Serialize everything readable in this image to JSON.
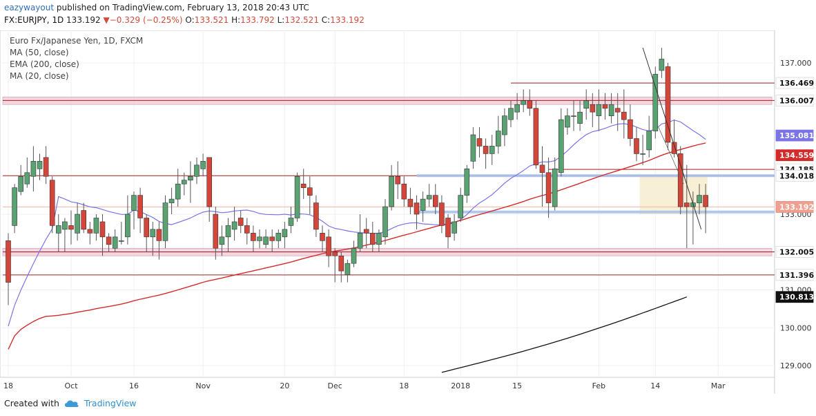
{
  "header": {
    "author": "eazywayout",
    "published": " published on TradingView.com, February 13, 2018 20:43 UTC",
    "symbol": "FX:EURJPY, 1D",
    "last": "133.192",
    "change": "−0.329 (−0.25%)",
    "open_label": "O:",
    "open": "133.521",
    "high_label": "H:",
    "high": "133.792",
    "low_label": "L:",
    "low": "132.521",
    "close_label": "C:",
    "close": "133.192"
  },
  "legend": {
    "title": "Euro Fx/Japanese Yen, 1D, FXCM",
    "ma50": "MA (50, close)",
    "ema200": "EMA (200, close)",
    "ma20": "MA (20, close)"
  },
  "footer": {
    "created_with": "Created with",
    "brand": "TradingView"
  },
  "colors": {
    "up": "#5aa272",
    "down": "#d4463a",
    "ma20": "#7b74e6",
    "ma50": "#d42a2a",
    "ema200": "#111111",
    "resistance": "#a01c1c",
    "zone": "#f2c7d4",
    "support_blue": "#a9c1ea",
    "box": "#f7ecd0"
  },
  "chart_data": {
    "type": "candlestick",
    "title": "Euro Fx/Japanese Yen, 1D, FXCM",
    "ylim": [
      128.8,
      137.5
    ],
    "y_ticks": [
      129.0,
      130.0,
      131.0,
      133.0,
      137.0
    ],
    "x_ticks": [
      {
        "label": "18",
        "i": 0
      },
      {
        "label": "Oct",
        "i": 10
      },
      {
        "label": "16",
        "i": 20
      },
      {
        "label": "Nov",
        "i": 31
      },
      {
        "label": "20",
        "i": 44
      },
      {
        "label": "Dec",
        "i": 52
      },
      {
        "label": "18",
        "i": 63
      },
      {
        "label": "2018",
        "i": 72
      },
      {
        "label": "15",
        "i": 81
      },
      {
        "label": "Feb",
        "i": 94
      },
      {
        "label": "14",
        "i": 103
      },
      {
        "label": "Mar",
        "i": 113
      }
    ],
    "price_labels": [
      {
        "value": 136.469,
        "text": "136.469",
        "kind": "line"
      },
      {
        "value": 136.007,
        "text": "136.007",
        "kind": "line"
      },
      {
        "value": 135.081,
        "text": "135.081",
        "kind": "ma20"
      },
      {
        "value": 134.559,
        "text": "134.559",
        "kind": "ma50"
      },
      {
        "value": 134.185,
        "text": "134.185",
        "kind": "line"
      },
      {
        "value": 134.018,
        "text": "134.018",
        "kind": "line"
      },
      {
        "value": 133.192,
        "text": "133.192",
        "kind": "last"
      },
      {
        "value": 132.005,
        "text": "132.005",
        "kind": "line"
      },
      {
        "value": 131.396,
        "text": "131.396",
        "kind": "line"
      },
      {
        "value": 130.813,
        "text": "130.813",
        "kind": "ema200"
      }
    ],
    "candles": [
      [
        132.3,
        131.2,
        132.5,
        130.6
      ],
      [
        132.7,
        133.7,
        133.8,
        132.5
      ],
      [
        133.6,
        134.0,
        134.3,
        133.5
      ],
      [
        133.8,
        134.1,
        134.5,
        133.7
      ],
      [
        134.0,
        134.4,
        134.8,
        133.6
      ],
      [
        134.2,
        134.4,
        134.6,
        133.9
      ],
      [
        134.5,
        134.0,
        134.8,
        133.8
      ],
      [
        133.9,
        132.7,
        134.0,
        132.5
      ],
      [
        132.5,
        132.7,
        133.0,
        132.0
      ],
      [
        132.6,
        132.8,
        132.9,
        132.0
      ],
      [
        132.7,
        132.6,
        133.1,
        132.2
      ],
      [
        132.5,
        133.0,
        133.3,
        132.3
      ],
      [
        133.1,
        132.6,
        133.3,
        132.5
      ],
      [
        132.6,
        132.5,
        132.8,
        132.2
      ],
      [
        132.5,
        132.9,
        133.0,
        132.3
      ],
      [
        132.8,
        132.4,
        133.0,
        131.9
      ],
      [
        132.4,
        132.2,
        132.5,
        132.0
      ],
      [
        132.1,
        132.4,
        132.6,
        132.0
      ],
      [
        132.3,
        132.3,
        132.8,
        132.2
      ],
      [
        132.4,
        133.0,
        133.5,
        132.2
      ],
      [
        133.1,
        133.5,
        133.6,
        132.6
      ],
      [
        133.5,
        132.9,
        133.7,
        132.5
      ],
      [
        132.9,
        132.4,
        133.0,
        132.0
      ],
      [
        132.4,
        132.6,
        132.8,
        131.9
      ],
      [
        132.6,
        132.3,
        132.8,
        131.8
      ],
      [
        132.3,
        133.3,
        133.5,
        132.1
      ],
      [
        133.3,
        133.4,
        133.7,
        133.0
      ],
      [
        133.4,
        133.8,
        134.2,
        133.2
      ],
      [
        133.8,
        133.9,
        134.1,
        133.5
      ],
      [
        133.9,
        134.0,
        134.4,
        133.3
      ],
      [
        134.0,
        134.3,
        134.5,
        133.8
      ],
      [
        134.2,
        134.4,
        134.6,
        134.0
      ],
      [
        134.5,
        133.2,
        134.5,
        132.8
      ],
      [
        133.0,
        132.1,
        133.2,
        131.8
      ],
      [
        132.2,
        132.4,
        132.7,
        131.9
      ],
      [
        132.4,
        132.7,
        132.9,
        132.0
      ],
      [
        132.6,
        132.8,
        133.2,
        132.3
      ],
      [
        132.9,
        132.7,
        133.1,
        132.5
      ],
      [
        132.7,
        132.5,
        132.9,
        132.2
      ],
      [
        132.5,
        132.3,
        132.7,
        132.0
      ],
      [
        132.3,
        132.4,
        132.6,
        132.1
      ],
      [
        132.2,
        132.4,
        132.6,
        132.1
      ],
      [
        132.4,
        132.3,
        132.6,
        132.0
      ],
      [
        132.3,
        132.5,
        132.6,
        132.1
      ],
      [
        132.4,
        132.6,
        132.8,
        132.1
      ],
      [
        132.7,
        132.9,
        133.2,
        132.5
      ],
      [
        132.9,
        134.0,
        134.1,
        132.8
      ],
      [
        133.8,
        133.7,
        134.2,
        133.4
      ],
      [
        133.7,
        133.5,
        134.0,
        133.0
      ],
      [
        133.3,
        132.6,
        133.5,
        132.4
      ],
      [
        132.5,
        132.3,
        132.7,
        132.0
      ],
      [
        132.4,
        131.9,
        132.6,
        131.6
      ],
      [
        132.0,
        131.9,
        132.1,
        131.2
      ],
      [
        131.9,
        131.5,
        132.0,
        131.2
      ],
      [
        131.4,
        131.7,
        131.8,
        131.2
      ],
      [
        131.7,
        132.1,
        132.3,
        131.6
      ],
      [
        132.1,
        132.5,
        133.0,
        132.0
      ],
      [
        132.6,
        132.5,
        132.9,
        132.1
      ],
      [
        132.5,
        132.2,
        132.8,
        132.0
      ],
      [
        132.2,
        132.5,
        132.6,
        132.0
      ],
      [
        132.4,
        133.2,
        133.4,
        132.2
      ],
      [
        133.2,
        134.0,
        134.3,
        133.1
      ],
      [
        134.0,
        133.8,
        134.4,
        133.4
      ],
      [
        133.8,
        133.4,
        134.0,
        133.2
      ],
      [
        133.4,
        133.2,
        133.7,
        133.0
      ],
      [
        133.3,
        133.0,
        133.5,
        132.6
      ],
      [
        133.1,
        133.4,
        133.6,
        132.8
      ],
      [
        133.4,
        133.5,
        133.8,
        133.2
      ],
      [
        133.5,
        133.2,
        133.8,
        133.0
      ],
      [
        133.3,
        132.7,
        133.5,
        132.5
      ],
      [
        132.9,
        132.4,
        133.0,
        132.1
      ],
      [
        132.5,
        132.8,
        133.0,
        132.3
      ],
      [
        132.9,
        133.5,
        133.7,
        132.8
      ],
      [
        133.5,
        134.2,
        134.3,
        133.3
      ],
      [
        134.4,
        135.1,
        135.3,
        134.2
      ],
      [
        135.0,
        134.8,
        135.3,
        134.5
      ],
      [
        134.8,
        134.6,
        135.0,
        134.2
      ],
      [
        134.6,
        134.8,
        135.1,
        134.3
      ],
      [
        134.8,
        135.2,
        135.6,
        134.6
      ],
      [
        135.1,
        135.6,
        135.8,
        134.8
      ],
      [
        135.5,
        135.8,
        136.0,
        135.3
      ],
      [
        135.7,
        135.9,
        136.2,
        135.5
      ],
      [
        135.9,
        136.0,
        136.3,
        135.7
      ],
      [
        136.0,
        135.8,
        136.3,
        135.6
      ],
      [
        135.8,
        134.3,
        136.0,
        134.2
      ],
      [
        134.3,
        134.1,
        134.8,
        133.2
      ],
      [
        134.1,
        133.3,
        134.5,
        132.9
      ],
      [
        133.2,
        134.2,
        134.5,
        133.1
      ],
      [
        134.1,
        135.5,
        135.8,
        134.0
      ],
      [
        135.3,
        135.6,
        135.8,
        135.1
      ],
      [
        135.6,
        135.6,
        136.0,
        135.2
      ],
      [
        135.4,
        135.7,
        136.0,
        135.2
      ],
      [
        135.8,
        136.0,
        136.3,
        135.5
      ],
      [
        135.9,
        135.7,
        136.2,
        135.3
      ],
      [
        135.6,
        135.9,
        136.3,
        135.2
      ],
      [
        135.9,
        135.8,
        136.2,
        135.5
      ],
      [
        135.6,
        135.9,
        136.2,
        135.4
      ],
      [
        135.8,
        135.7,
        136.2,
        135.2
      ],
      [
        135.7,
        135.5,
        136.3,
        135.0
      ],
      [
        135.5,
        135.0,
        135.9,
        134.8
      ],
      [
        135.0,
        134.6,
        135.3,
        134.4
      ],
      [
        134.6,
        134.6,
        135.1,
        134.3
      ],
      [
        134.7,
        135.2,
        135.6,
        134.5
      ],
      [
        135.2,
        136.7,
        136.9,
        135.0
      ],
      [
        136.8,
        137.1,
        137.4,
        136.6
      ],
      [
        136.9,
        134.9,
        137.0,
        134.7
      ],
      [
        134.9,
        134.6,
        135.5,
        134.5
      ],
      [
        134.6,
        133.2,
        134.8,
        133.0
      ],
      [
        133.3,
        133.2,
        134.3,
        132.1
      ],
      [
        133.2,
        133.3,
        133.6,
        132.2
      ],
      [
        133.3,
        133.5,
        133.8,
        133.0
      ],
      [
        133.5,
        133.2,
        133.8,
        132.5
      ]
    ]
  }
}
